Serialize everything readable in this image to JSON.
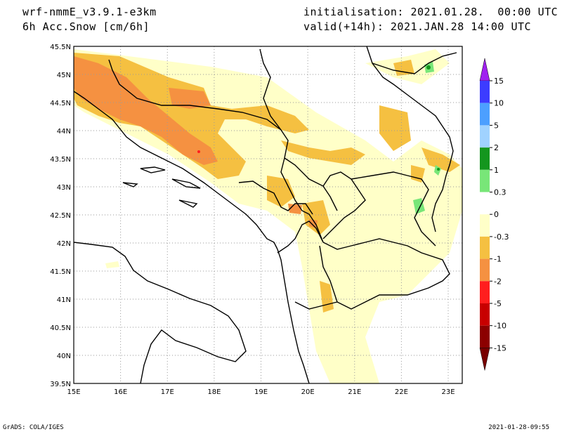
{
  "header": {
    "model": "wrf-nmmE_v3.9.1-e3km",
    "variable": "6h Acc.Snow [cm/6h]",
    "init": "initialisation: 2021.01.28.  00:00 UTC",
    "valid": "valid(+14h): 2021.JAN.28 14:00 UTC"
  },
  "map": {
    "lat_labels": [
      "45.5N",
      "45N",
      "44.5N",
      "44N",
      "43.5N",
      "43N",
      "42.5N",
      "42N",
      "41.5N",
      "41N",
      "40.5N",
      "40N",
      "39.5N"
    ],
    "lat_values": [
      45.5,
      45,
      44.5,
      44,
      43.5,
      43,
      42.5,
      42,
      41.5,
      41,
      40.5,
      40,
      39.5
    ],
    "lon_labels": [
      "15E",
      "16E",
      "17E",
      "18E",
      "19E",
      "20E",
      "21E",
      "22E",
      "23E"
    ],
    "lon_values": [
      15,
      16,
      17,
      18,
      19,
      20,
      21,
      22,
      23
    ],
    "lon_range": [
      15,
      23.3
    ],
    "lat_range": [
      39.5,
      45.5
    ]
  },
  "legend": {
    "labels": [
      "15",
      "10",
      "5",
      "2",
      "1",
      "0.3",
      "0",
      "-0.3",
      "-1",
      "-2",
      "-5",
      "-10",
      "-15"
    ],
    "colors": [
      "#a020f0",
      "#3c3cff",
      "#4c9fff",
      "#a0d2ff",
      "#14961e",
      "#78e678",
      "#ffffff",
      "#ffffc8",
      "#f5c041",
      "#f59141",
      "#ff1e1e",
      "#c80000",
      "#8c0000"
    ],
    "top_arrow_color": "#a020f0",
    "bottom_arrow_color": "#780000"
  },
  "footer": {
    "left": "GrADS: COLA/IGES",
    "right": "2021-01-28-09:55"
  }
}
